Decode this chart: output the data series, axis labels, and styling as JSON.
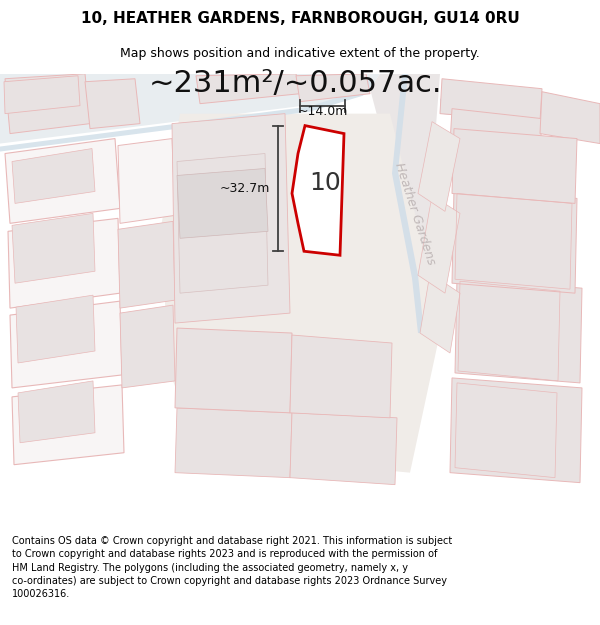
{
  "title": "10, HEATHER GARDENS, FARNBOROUGH, GU14 0RU",
  "subtitle": "Map shows position and indicative extent of the property.",
  "area_text": "~231m²/~0.057ac.",
  "width_label": "~14.0m",
  "height_label": "~32.7m",
  "property_number": "10",
  "street_label": "Heather Gardens",
  "footer_text": "Contains OS data © Crown copyright and database right 2021. This information is subject to Crown copyright and database rights 2023 and is reproduced with the permission of HM Land Registry. The polygons (including the associated geometry, namely x, y co-ordinates) are subject to Crown copyright and database rights 2023 Ordnance Survey 100026316.",
  "map_bg": "#f2eeee",
  "road_fill": "#dde8f0",
  "road_edge": "#c8d8e8",
  "plot_bg": "#e8e2e2",
  "plot_edge_light": "#e8b8b8",
  "property_fill": "#ffffff",
  "property_edge": "#cc0000",
  "dim_color": "#404040",
  "street_color": "#c0b8b8",
  "title_fontsize": 11,
  "subtitle_fontsize": 9,
  "area_fontsize": 22,
  "label_fontsize": 9,
  "number_fontsize": 18,
  "footer_fontsize": 7,
  "street_fontsize": 9
}
